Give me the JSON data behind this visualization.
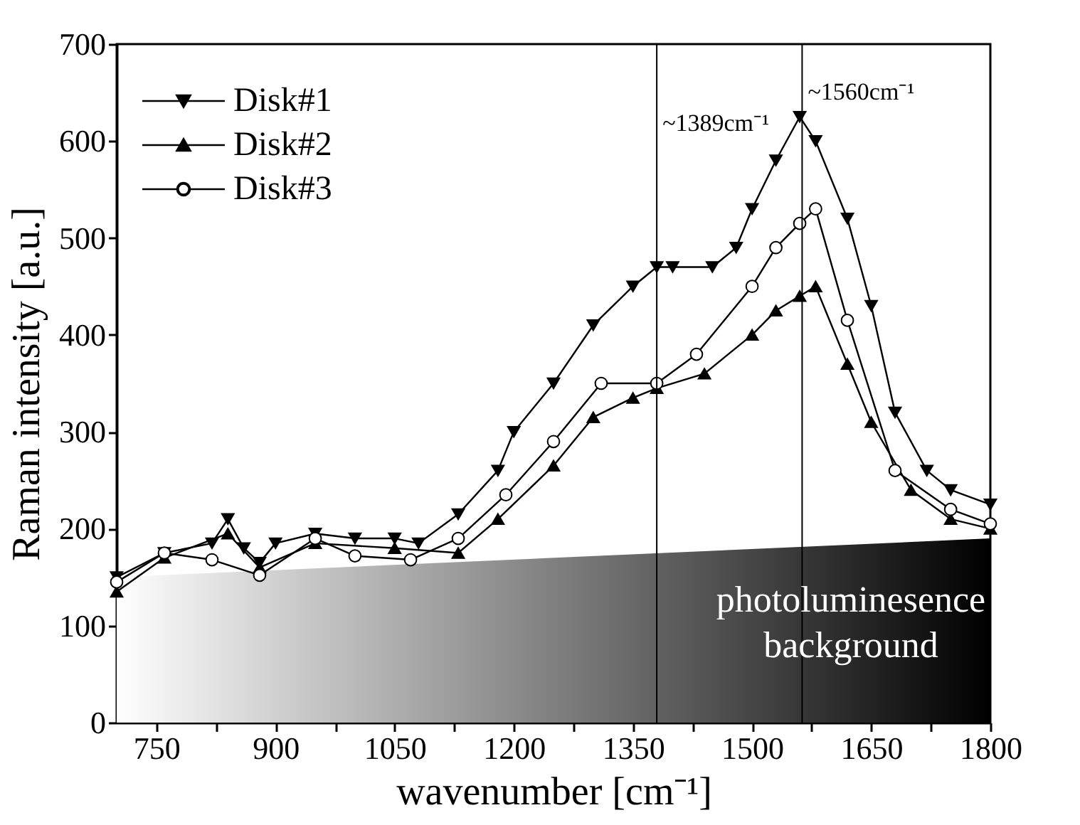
{
  "chart_data": {
    "type": "line",
    "xlabel": "wavenumber [cm⁻¹]",
    "ylabel": "Raman intensity [a.u.]",
    "xlim": [
      700,
      1800
    ],
    "xticks": [
      {
        "value": 750,
        "label": "750"
      },
      {
        "value": 825,
        "label": null
      },
      {
        "value": 900,
        "label": "900"
      },
      {
        "value": 975,
        "label": null
      },
      {
        "value": 1050,
        "label": "1050"
      },
      {
        "value": 1125,
        "label": null
      },
      {
        "value": 1200,
        "label": "1200"
      },
      {
        "value": 1275,
        "label": null
      },
      {
        "value": 1350,
        "label": "1350"
      },
      {
        "value": 1425,
        "label": null
      },
      {
        "value": 1500,
        "label": "1500"
      },
      {
        "value": 1575,
        "label": null
      },
      {
        "value": 1650,
        "label": "1650"
      },
      {
        "value": 1725,
        "label": null
      },
      {
        "value": 1800,
        "label": "1800"
      }
    ],
    "ylim": [
      0,
      700
    ],
    "yticks": [
      0,
      100,
      200,
      300,
      400,
      500,
      600,
      700
    ],
    "grid": false,
    "legend": "top left",
    "line_style": "solid",
    "series": [
      {
        "type": "area",
        "x": [
          700,
          1800
        ],
        "values": [
          150,
          190
        ],
        "colors": [
          "#ffffff",
          "#000000"
        ]
      },
      {
        "name": "Disk#1",
        "color": "#000000",
        "marker": "triangle-down",
        "x": [
          700,
          760,
          820,
          840,
          860,
          880,
          900,
          950,
          1000,
          1050,
          1080,
          1130,
          1180,
          1200,
          1250,
          1300,
          1350,
          1380,
          1400,
          1450,
          1480,
          1500,
          1530,
          1560,
          1580,
          1620,
          1650,
          1680,
          1720,
          1750,
          1800
        ],
        "values": [
          150,
          175,
          185,
          210,
          180,
          165,
          185,
          195,
          190,
          190,
          185,
          215,
          260,
          300,
          350,
          410,
          450,
          470,
          470,
          470,
          490,
          530,
          580,
          625,
          600,
          520,
          430,
          320,
          260,
          240,
          225
        ]
      },
      {
        "name": "Disk#2",
        "color": "#000000",
        "marker": "triangle-up",
        "x": [
          700,
          760,
          840,
          880,
          950,
          1050,
          1130,
          1180,
          1250,
          1300,
          1350,
          1380,
          1440,
          1500,
          1530,
          1560,
          1580,
          1620,
          1650,
          1700,
          1750,
          1800
        ],
        "values": [
          135,
          170,
          195,
          160,
          185,
          180,
          175,
          210,
          265,
          315,
          335,
          345,
          360,
          400,
          425,
          440,
          450,
          370,
          310,
          240,
          210,
          200
        ]
      },
      {
        "name": "Disk#3",
        "color": "#000000",
        "marker": "circle",
        "x": [
          700,
          760,
          820,
          880,
          950,
          1000,
          1070,
          1130,
          1190,
          1250,
          1310,
          1380,
          1430,
          1500,
          1530,
          1560,
          1580,
          1620,
          1680,
          1750,
          1800
        ],
        "values": [
          145,
          175,
          168,
          152,
          190,
          172,
          168,
          190,
          235,
          290,
          350,
          350,
          380,
          450,
          490,
          515,
          530,
          415,
          260,
          220,
          205
        ]
      }
    ],
    "ref_lines": [
      {
        "axis": "x",
        "value": 1380,
        "color": "#000000",
        "label": "~1389cm⁻¹"
      },
      {
        "axis": "x",
        "value": 1563,
        "color": "#000000",
        "label": "~1560cm⁻¹"
      }
    ],
    "annotations": [
      "photoluminesence background"
    ]
  }
}
